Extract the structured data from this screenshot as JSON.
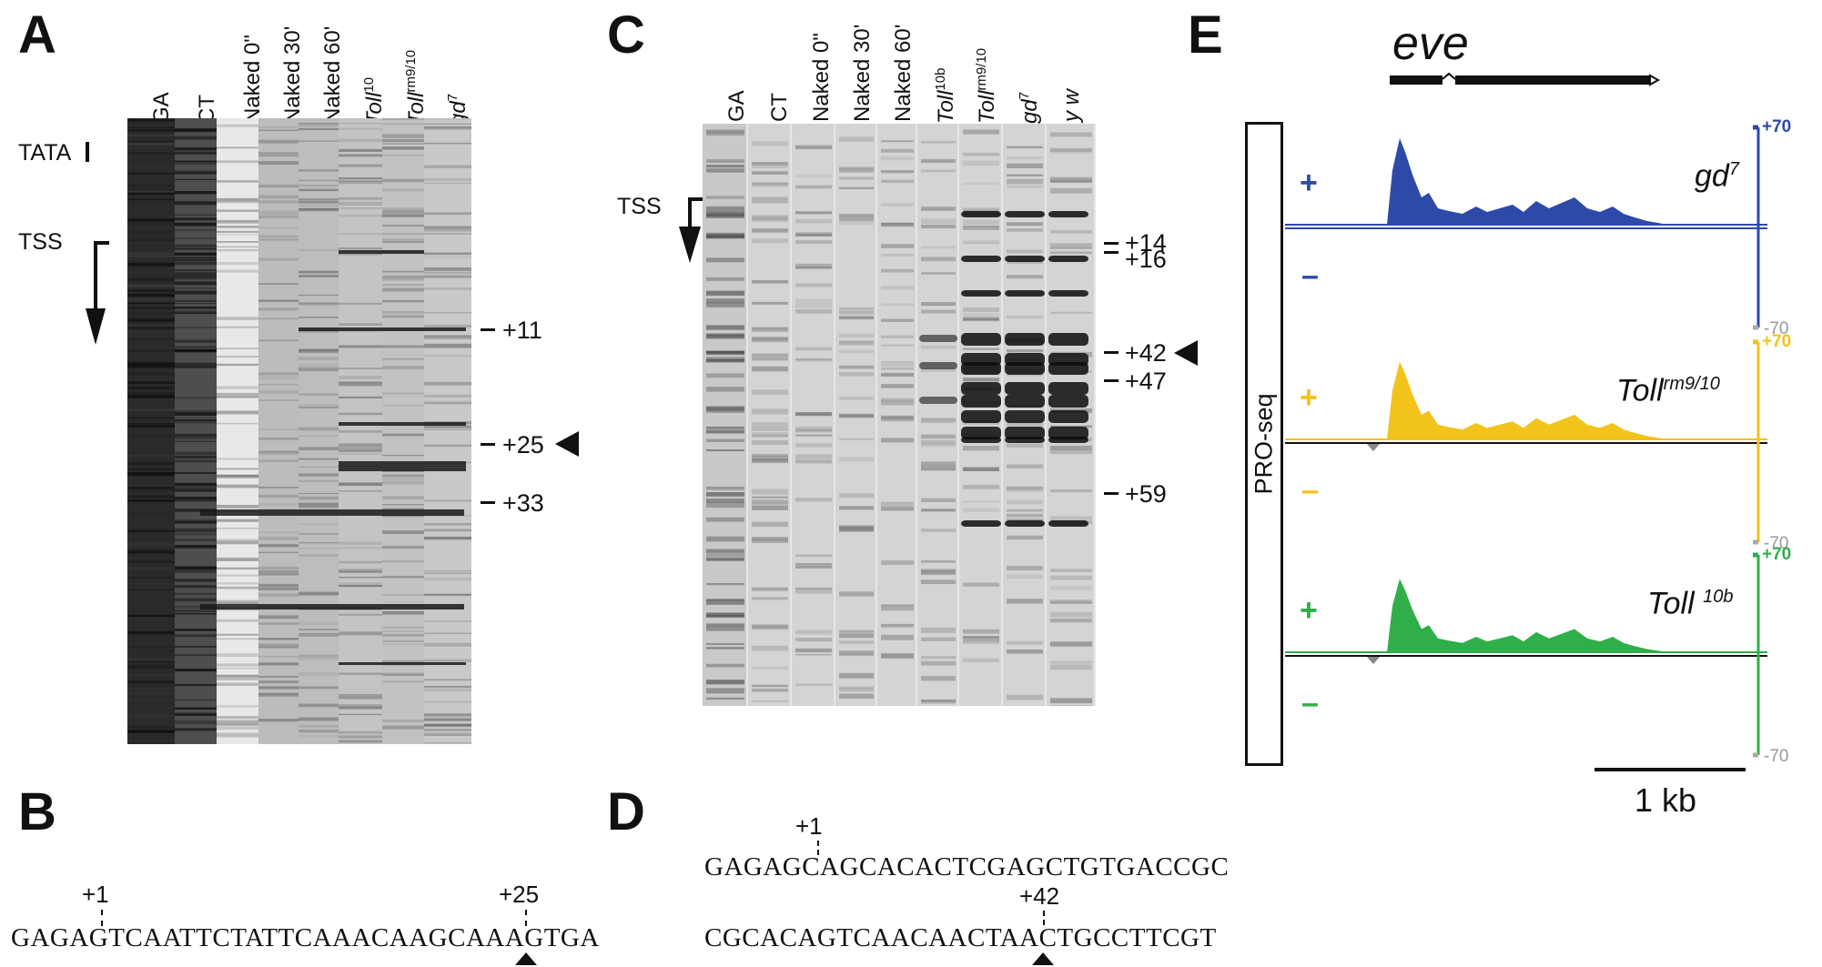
{
  "panels": {
    "A": {
      "letter": "A",
      "lanes": [
        {
          "base": "GA",
          "sup": ""
        },
        {
          "base": "CT",
          "sup": ""
        },
        {
          "base": "Naked 0\"",
          "sup": ""
        },
        {
          "base": "Naked 30'",
          "sup": ""
        },
        {
          "base": "Naked 60'",
          "sup": ""
        },
        {
          "base": "Toll",
          "sup": "10"
        },
        {
          "base": "Toll",
          "sup": "rm9/10"
        },
        {
          "base": "gd",
          "sup": "7"
        }
      ],
      "side_labels": {
        "tata": "TATA",
        "tss": "TSS"
      },
      "sites": [
        "+11",
        "+25",
        "+33"
      ]
    },
    "B": {
      "letter": "B",
      "marks": [
        "+1",
        "+25"
      ],
      "sequence": "GAGAGTCAATTCTATTCAAACAAGCAAAGTGA"
    },
    "C": {
      "letter": "C",
      "lanes": [
        {
          "base": "GA",
          "sup": ""
        },
        {
          "base": "CT",
          "sup": ""
        },
        {
          "base": "Naked 0\"",
          "sup": ""
        },
        {
          "base": "Naked 30'",
          "sup": ""
        },
        {
          "base": "Naked 60'",
          "sup": ""
        },
        {
          "base": "Toll",
          "sup": "10b"
        },
        {
          "base": "Toll",
          "sup": "rm9/10"
        },
        {
          "base": "gd",
          "sup": "7"
        },
        {
          "base": "y w",
          "sup": ""
        }
      ],
      "side_labels": {
        "tss": "TSS"
      },
      "sites": [
        "+14",
        "+16",
        "+42",
        "+47",
        "+59"
      ]
    },
    "D": {
      "letter": "D",
      "marks": [
        "+1",
        "+42"
      ],
      "sequence_line1": "GAGAGCAGCACACTCGAGCTGTGACCGC",
      "sequence_line2": "CGCACAGTCAACAACTAACTGCCTTCGT"
    },
    "E": {
      "letter": "E",
      "gene": "eve",
      "assay": "PRO-seq",
      "scale_bar": "1 kb",
      "tracks": [
        {
          "base": "gd",
          "sup": "7",
          "color": "#2e4aa8",
          "max_label": "+70",
          "min_label": "-70",
          "plus": "+",
          "minus": "–"
        },
        {
          "base": "Toll",
          "sup": "rm9/10",
          "color": "#f2c31a",
          "max_label": "+70",
          "min_label": "-70",
          "plus": "+",
          "minus": "–"
        },
        {
          "base": "Toll ",
          "sup": "10b",
          "color": "#2fae4a",
          "max_label": "+70",
          "min_label": "-70",
          "plus": "+",
          "minus": "–"
        }
      ]
    }
  }
}
